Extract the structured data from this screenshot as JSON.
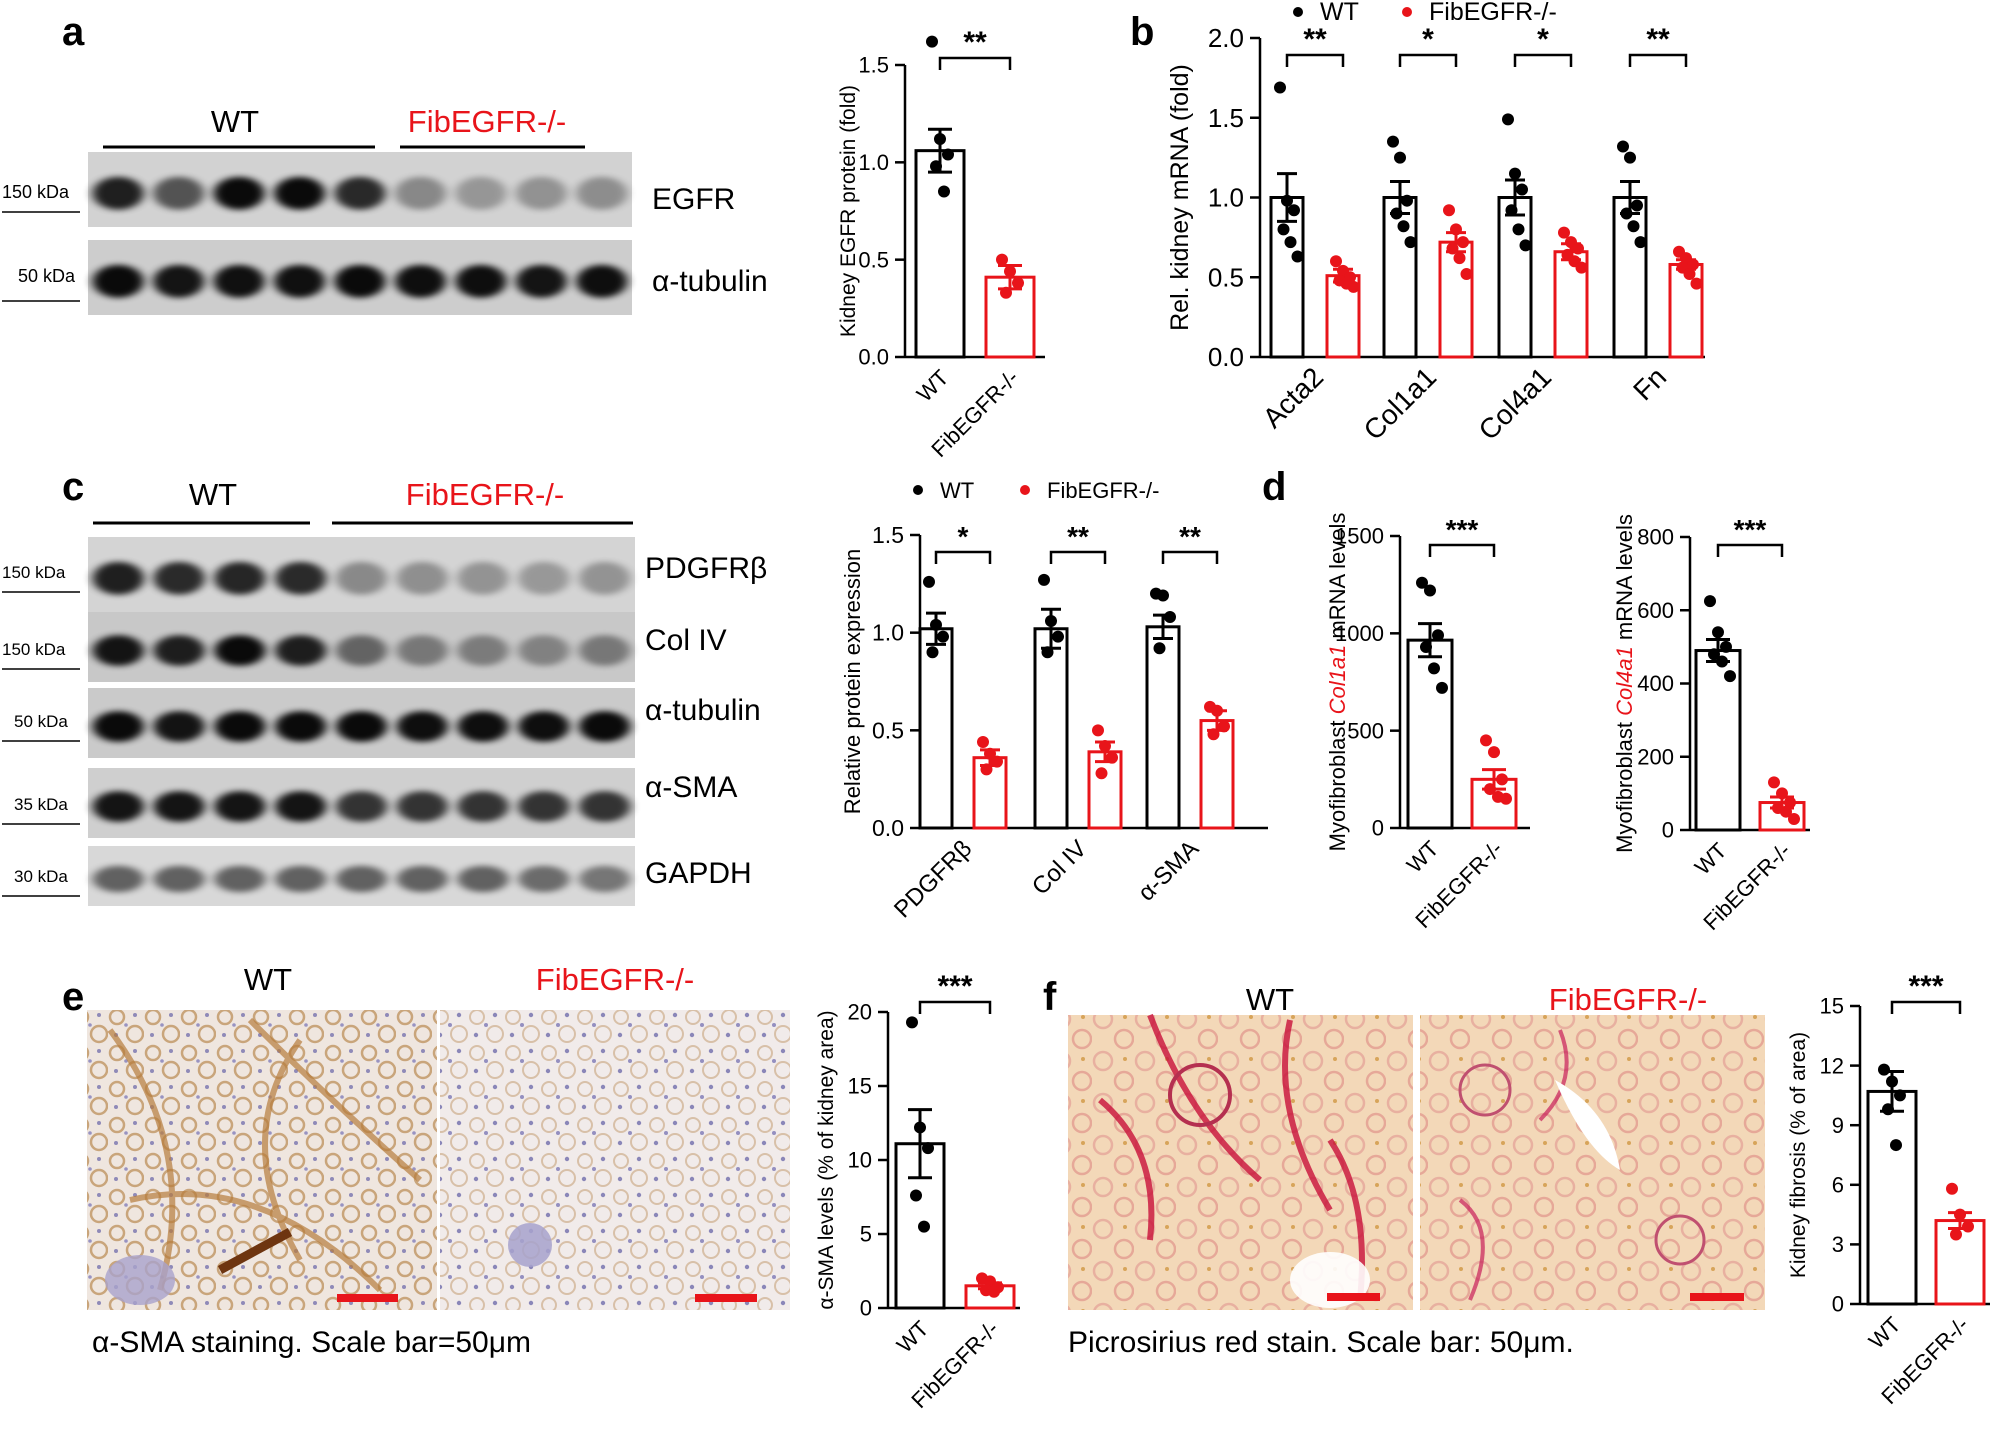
{
  "colors": {
    "wt": "#000000",
    "ko": "#e8141a"
  },
  "panel_a": {
    "label": "a",
    "groups": [
      "WT",
      "FibEGFR-/-"
    ],
    "bands": [
      {
        "marker": "150 kDa",
        "name": "EGFR"
      },
      {
        "marker": "50 kDa",
        "name": "α-tubulin"
      }
    ]
  },
  "panel_b": {
    "label": "b"
  },
  "panel_c": {
    "label": "c",
    "groups": [
      "WT",
      "FibEGFR-/-"
    ],
    "bands": [
      {
        "marker": "150 kDa",
        "name": "PDGFRβ"
      },
      {
        "marker": "150 kDa",
        "name": "Col IV"
      },
      {
        "marker": "50 kDa",
        "name": "α-tubulin"
      },
      {
        "marker": "35 kDa",
        "name": "α-SMA"
      },
      {
        "marker": "30 kDa",
        "name": "GAPDH"
      }
    ]
  },
  "panel_d": {
    "label": "d"
  },
  "panel_e": {
    "label": "e",
    "img_wt": "WT",
    "img_ko": "FibEGFR-/-",
    "caption": "α-SMA staining. Scale bar=50μm"
  },
  "panel_f": {
    "label": "f",
    "img_wt": "WT",
    "img_ko": "FibEGFR-/-",
    "caption": "Picrosirius red stain. Scale bar: 50μm."
  },
  "chart_data": [
    {
      "id": "a",
      "type": "bar",
      "categories": [
        "WT",
        "FibEGFR-/-"
      ],
      "values": [
        1.06,
        0.41
      ],
      "errors": [
        0.11,
        0.06
      ],
      "points": [
        [
          1.62,
          1.12,
          1.04,
          0.98,
          0.85
        ],
        [
          0.5,
          0.44,
          0.38,
          0.33
        ]
      ],
      "ylabel": "Kidney EGFR protein (fold)",
      "ylim": [
        0,
        1.5
      ],
      "yticks": [
        0,
        0.5,
        1.0,
        1.5
      ],
      "ytick_labels": [
        "0.0",
        "0.5",
        "1.0",
        "1.5"
      ],
      "significance": [
        "**"
      ]
    },
    {
      "id": "b",
      "type": "bar",
      "categories": [
        "Acta2",
        "Col1a1",
        "Col4a1",
        "Fn"
      ],
      "legend": [
        "WT",
        "FibEGFR-/-"
      ],
      "legend_position": "top",
      "series": [
        {
          "name": "WT",
          "values": [
            1.0,
            1.0,
            1.0,
            1.0
          ],
          "errors": [
            0.15,
            0.1,
            0.11,
            0.1
          ],
          "points": [
            [
              1.69,
              0.98,
              0.92,
              0.8,
              0.72,
              0.63
            ],
            [
              1.35,
              1.25,
              0.98,
              0.9,
              0.82,
              0.72
            ],
            [
              1.49,
              1.15,
              1.05,
              0.92,
              0.8,
              0.7
            ],
            [
              1.32,
              1.25,
              0.95,
              0.9,
              0.82,
              0.72
            ]
          ]
        },
        {
          "name": "FibEGFR-/-",
          "values": [
            0.51,
            0.72,
            0.66,
            0.58
          ],
          "errors": [
            0.04,
            0.06,
            0.05,
            0.03
          ],
          "points": [
            [
              0.6,
              0.54,
              0.5,
              0.48,
              0.46,
              0.44
            ],
            [
              0.92,
              0.8,
              0.72,
              0.68,
              0.62,
              0.52
            ],
            [
              0.78,
              0.72,
              0.68,
              0.64,
              0.6,
              0.56
            ],
            [
              0.66,
              0.62,
              0.58,
              0.56,
              0.52,
              0.46
            ]
          ]
        }
      ],
      "ylabel": "Rel. kidney mRNA (fold)",
      "ylim": [
        0,
        2.0
      ],
      "yticks": [
        0,
        0.5,
        1.0,
        1.5,
        2.0
      ],
      "ytick_labels": [
        "0.0",
        "0.5",
        "1.0",
        "1.5",
        "2.0"
      ],
      "significance": [
        "**",
        "*",
        "*",
        "**"
      ]
    },
    {
      "id": "c",
      "type": "bar",
      "categories": [
        "PDGFRβ",
        "Col IV",
        "α-SMA"
      ],
      "legend": [
        "WT",
        "FibEGFR-/-"
      ],
      "legend_position": "top",
      "series": [
        {
          "name": "WT",
          "values": [
            1.02,
            1.02,
            1.03
          ],
          "errors": [
            0.08,
            0.1,
            0.06
          ],
          "points": [
            [
              1.26,
              1.04,
              0.98,
              0.9
            ],
            [
              1.27,
              1.06,
              0.98,
              0.9
            ],
            [
              1.2,
              1.19,
              1.08,
              0.92
            ]
          ]
        },
        {
          "name": "FibEGFR-/-",
          "values": [
            0.36,
            0.39,
            0.55
          ],
          "errors": [
            0.04,
            0.05,
            0.05
          ],
          "points": [
            [
              0.44,
              0.38,
              0.34,
              0.3
            ],
            [
              0.5,
              0.42,
              0.36,
              0.28
            ],
            [
              0.62,
              0.6,
              0.52,
              0.48
            ]
          ]
        }
      ],
      "ylabel": "Relative protein expression",
      "ylim": [
        0,
        1.5
      ],
      "yticks": [
        0,
        0.5,
        1.0,
        1.5
      ],
      "ytick_labels": [
        "0.0",
        "0.5",
        "1.0",
        "1.5"
      ],
      "significance": [
        "*",
        "**",
        "**"
      ]
    },
    {
      "id": "d1",
      "type": "bar",
      "categories": [
        "WT",
        "FibEGFR-/-"
      ],
      "values": [
        965,
        250
      ],
      "errors": [
        85,
        50
      ],
      "points": [
        [
          1260,
          1220,
          990,
          930,
          820,
          720
        ],
        [
          450,
          390,
          250,
          200,
          160,
          150
        ]
      ],
      "ylabel_prefix": "Myofibroblast ",
      "ylabel_gene": "Col1a1",
      "ylabel_suffix": " mRNA levels",
      "ylim": [
        0,
        1500
      ],
      "yticks": [
        0,
        500,
        1000,
        1500
      ],
      "ytick_labels": [
        "0",
        "500",
        "1000",
        "1500"
      ],
      "significance": [
        "***"
      ]
    },
    {
      "id": "d2",
      "type": "bar",
      "categories": [
        "WT",
        "FibEGFR-/-"
      ],
      "values": [
        490,
        75
      ],
      "errors": [
        30,
        15
      ],
      "points": [
        [
          625,
          540,
          500,
          480,
          460,
          420
        ],
        [
          130,
          100,
          75,
          60,
          50,
          30
        ]
      ],
      "ylabel_prefix": "Myofibroblast ",
      "ylabel_gene": "Col4a1",
      "ylabel_suffix": " mRNA levels",
      "ylim": [
        0,
        800
      ],
      "yticks": [
        0,
        200,
        400,
        600,
        800
      ],
      "ytick_labels": [
        "0",
        "200",
        "400",
        "600",
        "800"
      ],
      "significance": [
        "***"
      ]
    },
    {
      "id": "e",
      "type": "bar",
      "categories": [
        "WT",
        "FibEGFR-/-"
      ],
      "values": [
        11.1,
        1.5
      ],
      "errors": [
        2.3,
        0.2
      ],
      "points": [
        [
          19.3,
          12.2,
          10.8,
          7.6,
          5.5
        ],
        [
          2.0,
          1.8,
          1.4,
          1.2,
          1.1
        ]
      ],
      "ylabel": "α-SMA levels (% of kidney area)",
      "ylim": [
        0,
        20
      ],
      "yticks": [
        0,
        5,
        10,
        15,
        20
      ],
      "ytick_labels": [
        "0",
        "5",
        "10",
        "15",
        "20"
      ],
      "significance": [
        "***"
      ]
    },
    {
      "id": "f",
      "type": "bar",
      "categories": [
        "WT",
        "FibEGFR-/-"
      ],
      "values": [
        10.7,
        4.2
      ],
      "errors": [
        1.0,
        0.4
      ],
      "points": [
        [
          11.8,
          11.2,
          10.5,
          9.8,
          8.0
        ],
        [
          5.8,
          4.5,
          3.9,
          3.5
        ]
      ],
      "ylabel": "Kidney fibrosis (% of area)",
      "ylim": [
        0,
        15
      ],
      "yticks": [
        0,
        3,
        6,
        9,
        12,
        15
      ],
      "ytick_labels": [
        "0",
        "3",
        "6",
        "9",
        "12",
        "15"
      ],
      "significance": [
        "***"
      ]
    }
  ]
}
